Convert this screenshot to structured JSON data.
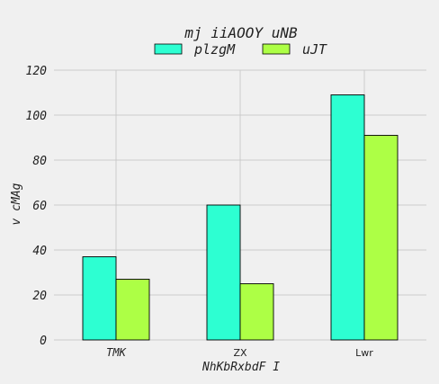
{
  "chart_data": {
    "type": "bar",
    "title": "mj iiAOOY  uNB",
    "xlabel": "NhKbRxbdF I",
    "ylabel": "v cMAg",
    "categories": [
      "TMK",
      "ZX",
      "Lwr"
    ],
    "series": [
      {
        "name": "plzgM",
        "values": [
          37,
          60,
          109
        ],
        "color": "#2dffd2"
      },
      {
        "name": "uJT",
        "values": [
          27,
          25,
          91
        ],
        "color": "#adff45"
      }
    ],
    "ylim": [
      0,
      120
    ],
    "yticks": [
      0,
      20,
      40,
      60,
      80,
      100,
      120
    ],
    "grid": true,
    "legend": "top-center"
  }
}
